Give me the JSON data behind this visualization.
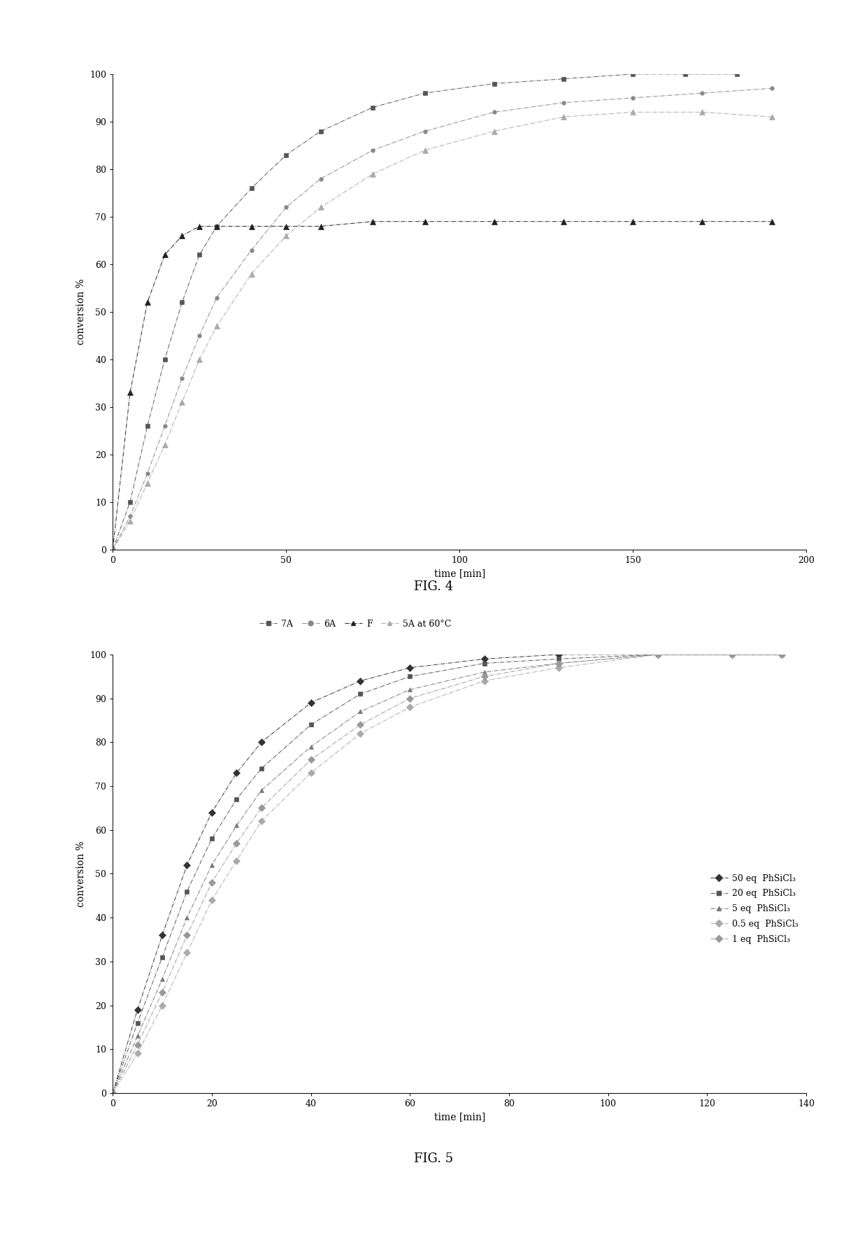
{
  "fig4": {
    "title": "FIG. 4",
    "xlabel": "time [min]",
    "ylabel": "conversion %",
    "xlim": [
      0,
      200
    ],
    "ylim": [
      0,
      100
    ],
    "xticks": [
      0,
      50,
      100,
      150,
      200
    ],
    "yticks": [
      0,
      10,
      20,
      30,
      40,
      50,
      60,
      70,
      80,
      90,
      100
    ],
    "series": {
      "7A": {
        "label": "7A",
        "color": "#555555",
        "marker": "s",
        "linestyle": "-.",
        "x": [
          0,
          5,
          10,
          15,
          20,
          25,
          30,
          40,
          50,
          60,
          75,
          90,
          110,
          130,
          150,
          165,
          180
        ],
        "y": [
          0,
          10,
          26,
          40,
          52,
          62,
          68,
          76,
          83,
          88,
          93,
          96,
          98,
          99,
          100,
          100,
          100
        ]
      },
      "6A": {
        "label": "6A",
        "color": "#888888",
        "marker": "o",
        "linestyle": "-.",
        "x": [
          0,
          5,
          10,
          15,
          20,
          25,
          30,
          40,
          50,
          60,
          75,
          90,
          110,
          130,
          150,
          170,
          190
        ],
        "y": [
          0,
          7,
          16,
          26,
          36,
          45,
          53,
          63,
          72,
          78,
          84,
          88,
          92,
          94,
          95,
          96,
          97
        ]
      },
      "F": {
        "label": "F",
        "color": "#222222",
        "marker": "^",
        "linestyle": "-.",
        "x": [
          0,
          5,
          10,
          15,
          20,
          25,
          30,
          40,
          50,
          60,
          75,
          90,
          110,
          130,
          150,
          170,
          190
        ],
        "y": [
          0,
          33,
          52,
          62,
          66,
          68,
          68,
          68,
          68,
          68,
          69,
          69,
          69,
          69,
          69,
          69,
          69
        ]
      },
      "5A_60": {
        "label": "5A at 60°C",
        "color": "#aaaaaa",
        "marker": "^",
        "linestyle": "-.",
        "x": [
          0,
          5,
          10,
          15,
          20,
          25,
          30,
          40,
          50,
          60,
          75,
          90,
          110,
          130,
          150,
          170,
          190
        ],
        "y": [
          0,
          6,
          14,
          22,
          31,
          40,
          47,
          58,
          66,
          72,
          79,
          84,
          88,
          91,
          92,
          92,
          91
        ]
      }
    }
  },
  "fig5": {
    "title": "FIG. 5",
    "xlabel": "time [min]",
    "ylabel": "conversion %",
    "xlim": [
      0,
      140
    ],
    "ylim": [
      0,
      100
    ],
    "xticks": [
      0,
      20,
      40,
      60,
      80,
      100,
      120,
      140
    ],
    "yticks": [
      0,
      10,
      20,
      30,
      40,
      50,
      60,
      70,
      80,
      90,
      100
    ],
    "series": {
      "50eq": {
        "label": "50 eq  PhSiCl₃",
        "color": "#333333",
        "marker": "D",
        "linestyle": "-.",
        "x": [
          0,
          5,
          10,
          15,
          20,
          25,
          30,
          40,
          50,
          60,
          75,
          90,
          110,
          125,
          135
        ],
        "y": [
          0,
          19,
          36,
          52,
          64,
          73,
          80,
          89,
          94,
          97,
          99,
          100,
          100,
          100,
          100
        ]
      },
      "20eq": {
        "label": "20 eq  PhSiCl₃",
        "color": "#555555",
        "marker": "s",
        "linestyle": "-.",
        "x": [
          0,
          5,
          10,
          15,
          20,
          25,
          30,
          40,
          50,
          60,
          75,
          90,
          110,
          125,
          135
        ],
        "y": [
          0,
          16,
          31,
          46,
          58,
          67,
          74,
          84,
          91,
          95,
          98,
          99,
          100,
          100,
          100
        ]
      },
      "5eq": {
        "label": "5 eq  PhSiCl₃",
        "color": "#777777",
        "marker": "^",
        "linestyle": "-.",
        "x": [
          0,
          5,
          10,
          15,
          20,
          25,
          30,
          40,
          50,
          60,
          75,
          90,
          110,
          125,
          135
        ],
        "y": [
          0,
          13,
          26,
          40,
          52,
          61,
          69,
          79,
          87,
          92,
          96,
          98,
          100,
          100,
          100
        ]
      },
      "0p5eq": {
        "label": "0.5 eq  PhSiCl₃",
        "color": "#aaaaaa",
        "marker": "D",
        "linestyle": "-.",
        "x": [
          0,
          5,
          10,
          15,
          20,
          25,
          30,
          40,
          50,
          60,
          75,
          90,
          110,
          125,
          135
        ],
        "y": [
          0,
          9,
          20,
          32,
          44,
          53,
          62,
          73,
          82,
          88,
          94,
          97,
          100,
          100,
          100
        ]
      },
      "1eq": {
        "label": "1 eq  PhSiCl₃",
        "color": "#999999",
        "marker": "D",
        "linestyle": "-.",
        "x": [
          0,
          5,
          10,
          15,
          20,
          25,
          30,
          40,
          50,
          60,
          75,
          90,
          110,
          125,
          135
        ],
        "y": [
          0,
          11,
          23,
          36,
          48,
          57,
          65,
          76,
          84,
          90,
          95,
          98,
          100,
          100,
          100
        ]
      }
    }
  }
}
